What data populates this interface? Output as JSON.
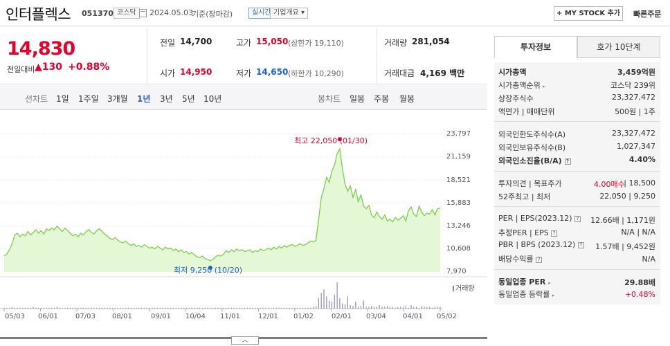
{
  "header": {
    "name": "인터플렉스",
    "code": "051370",
    "market": "코스닥",
    "date": "2024.05.03",
    "basis": "기준(장마감)",
    "realtime": "실시간",
    "corp_overview": "기업개요 ▾",
    "mystock_label": "+ MY STOCK 추가",
    "quick_order": "빠른주문"
  },
  "quote": {
    "price": "14,830",
    "change_label": "전일대비",
    "change_value": "▲130",
    "change_pct": "+0.88%",
    "prev_label": "전일",
    "prev_value": "14,700",
    "open_label": "시가",
    "open_value": "14,950",
    "high_label": "고가",
    "high_value": "15,050",
    "upper_limit": "(상한가 19,110)",
    "low_label": "저가",
    "low_value": "14,650",
    "lower_limit": "(하한가 10,290)",
    "volume_label": "거래량",
    "volume_value": "281,054",
    "amount_label": "거래대금",
    "amount_value": "4,169 백만"
  },
  "period_bar": {
    "line_chart_label": "선차트",
    "line_periods": [
      "1일",
      "1주일",
      "3개월",
      "1년",
      "3년",
      "5년",
      "10년"
    ],
    "selected": "1년",
    "candle_label": "봉차트",
    "candle_periods": [
      "일봉",
      "주봉",
      "월봉"
    ]
  },
  "chart_data": {
    "type": "area",
    "y_ticks": [
      "23,797",
      "21,159",
      "18,521",
      "15,883",
      "13,246",
      "10,608",
      "7,970"
    ],
    "ylim": [
      7970,
      23797
    ],
    "x_ticks": [
      "05/03",
      "06/01",
      "07/03",
      "08/01",
      "09/01",
      "10/04",
      "11/01",
      "12/01",
      "01/02",
      "02/01",
      "03/04",
      "04/01",
      "05/02"
    ],
    "max_label": "최고 22,050 (01/30)",
    "min_label": "최저 9,250 (10/20)",
    "volume_legend": "거래량",
    "series": [
      {
        "values": [
          9800,
          10000,
          10500,
          11200,
          12200,
          12400,
          12000,
          12300,
          12100,
          12600,
          12200,
          12500,
          12800,
          12400,
          12700,
          12300,
          12900,
          12700,
          13000,
          12800,
          13200,
          12900,
          12600,
          13000,
          12700,
          12400,
          12100,
          12300,
          12000,
          12400,
          12200,
          12600,
          12800,
          12500,
          12300,
          12700,
          12900,
          12600,
          12300,
          12100,
          11800,
          11700,
          11900,
          11600,
          11400,
          11300,
          11500,
          11200,
          11000,
          11200,
          10900,
          11000,
          10800,
          11100,
          10900,
          10700,
          10800,
          10600,
          10900,
          10700,
          10500,
          10800,
          10600,
          10700,
          10400,
          10600,
          10300,
          10500,
          10200,
          10300,
          10000,
          10200,
          9900,
          9700,
          9600,
          9800,
          9500,
          9400,
          9250,
          9400,
          9700,
          9900,
          9800,
          10000,
          10400,
          10200,
          10500,
          10300,
          10600,
          10400,
          10500,
          10300,
          10400,
          10500,
          10200,
          10400,
          10300,
          10600,
          10400,
          10500,
          10700,
          10500,
          10800,
          10600,
          10900,
          10700,
          11000,
          10800,
          11000,
          11100,
          10900,
          11000,
          11200,
          11000,
          11100,
          11300,
          11500,
          11400,
          11600,
          14000,
          16500,
          17500,
          18800,
          18200,
          19500,
          20200,
          21500,
          22050,
          19800,
          18000,
          17200,
          17800,
          16500,
          17400,
          16000,
          16800,
          15500,
          15200,
          15600,
          14500,
          14200,
          14800,
          14300,
          14000,
          14500,
          13800,
          14000,
          13700,
          14200,
          13900,
          14100,
          14400,
          13800,
          15000,
          15400,
          14600,
          14300,
          15500,
          14800,
          14400,
          14700,
          14600,
          15100,
          14500,
          15200,
          15300
        ]
      }
    ],
    "volume": [
      1,
      1,
      1,
      2,
      1,
      1,
      1,
      1,
      1,
      1,
      1,
      2,
      1,
      1,
      1,
      1,
      1,
      1,
      1,
      1,
      2,
      1,
      1,
      1,
      1,
      1,
      1,
      1,
      1,
      1,
      1,
      1,
      1,
      1,
      1,
      1,
      1,
      1,
      1,
      1,
      1,
      1,
      1,
      1,
      1,
      1,
      1,
      1,
      1,
      1,
      1,
      1,
      1,
      1,
      1,
      1,
      1,
      1,
      1,
      1,
      1,
      1,
      1,
      1,
      1,
      1,
      1,
      1,
      1,
      1,
      1,
      1,
      1,
      1,
      1,
      1,
      1,
      1,
      1,
      1,
      1,
      1,
      1,
      1,
      1,
      1,
      1,
      1,
      1,
      1,
      1,
      1,
      1,
      1,
      1,
      1,
      1,
      1,
      1,
      1,
      1,
      1,
      1,
      1,
      1,
      1,
      1,
      1,
      1,
      1,
      1,
      1,
      1,
      1,
      1,
      1,
      1,
      2,
      3,
      12,
      18,
      22,
      14,
      9,
      8,
      16,
      30,
      12,
      6,
      5,
      14,
      4,
      3,
      8,
      2,
      3,
      9,
      2,
      2,
      3,
      2,
      2,
      4,
      2,
      2,
      3,
      2,
      2,
      1,
      2,
      2,
      2,
      3,
      1,
      4,
      2,
      2,
      1,
      3,
      2,
      2,
      2,
      1,
      2,
      2,
      2
    ]
  },
  "side_tabs": [
    "투자정보",
    "호가 10단계"
  ],
  "side": {
    "market_cap_label": "시가총액",
    "market_cap_value": "3,459억원",
    "rank_label": "시가총액순위",
    "rank_value": "코스닥 239위",
    "shares_label": "상장주식수",
    "shares_value": "23,327,472",
    "face_label": "액면가 | 매매단위",
    "face_value": "500원 | 1주",
    "foreign_limit_label": "외국인한도주식수(A)",
    "foreign_limit_value": "23,327,472",
    "foreign_hold_label": "외국인보유주식수(B)",
    "foreign_hold_value": "1,027,347",
    "foreign_ratio_label": "외국인소진율(B/A)",
    "foreign_ratio_value": "4.40%",
    "opinion_label": "투자의견 | 목표주가",
    "opinion_value": "4.00매수",
    "target_value": "| 18,500",
    "w52_label": "52주최고 | 최저",
    "w52_value": "22,050 | 9,250",
    "per_label": "PER | EPS(2023.12)",
    "per_value": "12.66배 | 1,171원",
    "est_per_label": "추정PER | EPS",
    "est_per_value": "N/A | N/A",
    "pbr_label": "PBR | BPS (2023.12)",
    "pbr_value": "1.57배 | 9,452원",
    "div_label": "배당수익률",
    "div_value": "N/A",
    "ind_per_label": "동일업종 PER",
    "ind_per_value": "29.88배",
    "ind_rate_label": "동일업종 등락률",
    "ind_rate_value": "+0.48%"
  },
  "collapse_icon": "chevron-up-icon"
}
